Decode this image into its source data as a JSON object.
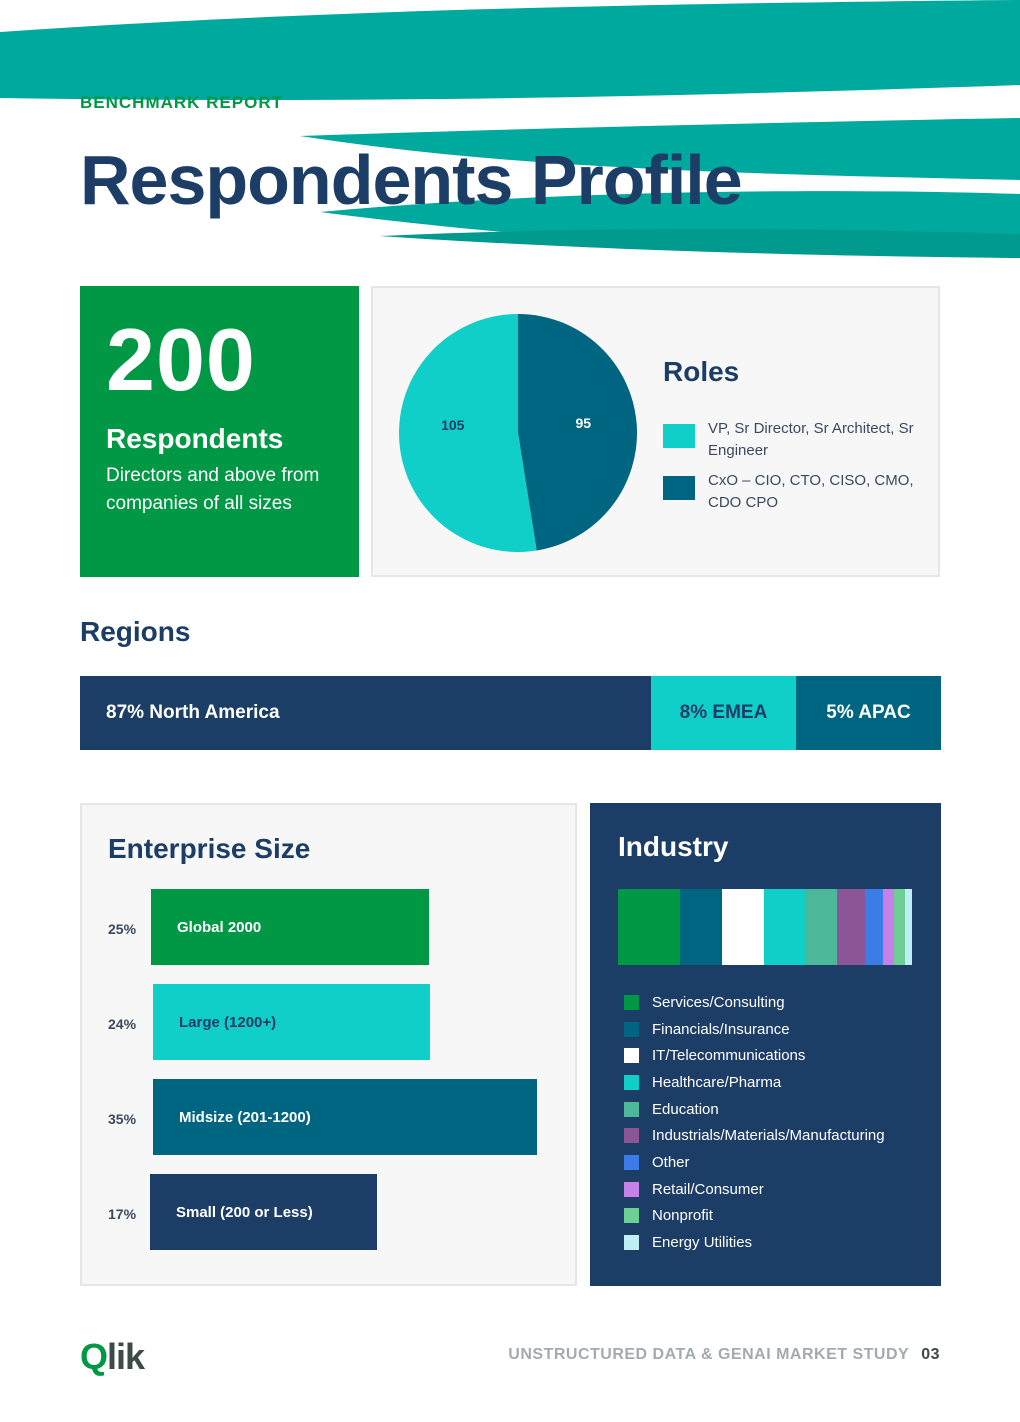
{
  "header": {
    "kicker": "BENCHMARK REPORT",
    "title": "Respondents Profile",
    "accent_color": "#00a99d"
  },
  "respondents": {
    "count": "200",
    "label": "Respondents",
    "description": "Directors and above from companies of all sizes",
    "color": "#009845"
  },
  "roles": {
    "title": "Roles",
    "legend": [
      {
        "label": "VP, Sr Director, Sr Architect, Sr Engineer",
        "color": "#10cfc9"
      },
      {
        "label": "CxO – CIO, CTO, CISO, CMO, CDO CPO",
        "color": "#006580"
      }
    ]
  },
  "regions": {
    "title": "Regions",
    "segments": [
      {
        "label": "87% North America",
        "value": 87,
        "color": "#1b3d66"
      },
      {
        "label": "8% EMEA",
        "value": 8,
        "color": "#10cfc9"
      },
      {
        "label": "5% APAC",
        "value": 5,
        "color": "#006580"
      }
    ]
  },
  "enterprise": {
    "title": "Enterprise Size",
    "items": [
      {
        "pct": "25%",
        "label": "Global 2000",
        "value": 25,
        "color": "#009845",
        "text_color": "#ffffff"
      },
      {
        "pct": "24%",
        "label": "Large (1200+)",
        "value": 24,
        "color": "#10cfc9",
        "text_color": "#1b3d66"
      },
      {
        "pct": "35%",
        "label": "Midsize (201-1200)",
        "value": 35,
        "color": "#006580",
        "text_color": "#ffffff"
      },
      {
        "pct": "17%",
        "label": "Small (200 or Less)",
        "value": 17,
        "color": "#1b3d66",
        "text_color": "#ffffff"
      }
    ]
  },
  "industry": {
    "title": "Industry",
    "items": [
      {
        "label": "Services/Consulting",
        "color": "#009845",
        "share": 21
      },
      {
        "label": "Financials/Insurance",
        "color": "#006580",
        "share": 14.5
      },
      {
        "label": "IT/Telecommunications",
        "color": "#ffffff",
        "share": 14
      },
      {
        "label": "Healthcare/Pharma",
        "color": "#10cfc9",
        "share": 14
      },
      {
        "label": "Education",
        "color": "#4db899",
        "share": 11
      },
      {
        "label": "Industrials/Materials/Manufacturing",
        "color": "#8c5597",
        "share": 9.5
      },
      {
        "label": "Other",
        "color": "#3b7ce6",
        "share": 6
      },
      {
        "label": "Retail/Consumer",
        "color": "#c780e8",
        "share": 4
      },
      {
        "label": "Nonprofit",
        "color": "#6dcf93",
        "share": 3.5
      },
      {
        "label": "Energy Utilities",
        "color": "#bfeef5",
        "share": 2.5
      }
    ]
  },
  "chart_data": {
    "type": "pie",
    "title": "Roles",
    "categories": [
      "VP, Sr Director, Sr Architect, Sr Engineer",
      "CxO – CIO, CTO, CISO, CMO, CDO CPO"
    ],
    "values": [
      105,
      95
    ],
    "colors": [
      "#10cfc9",
      "#006580"
    ],
    "legend": "right"
  },
  "footer": {
    "logo_q": "Q",
    "logo_rest": "lik",
    "study": "UNSTRUCTURED DATA & GENAI MARKET STUDY",
    "page": "03"
  }
}
